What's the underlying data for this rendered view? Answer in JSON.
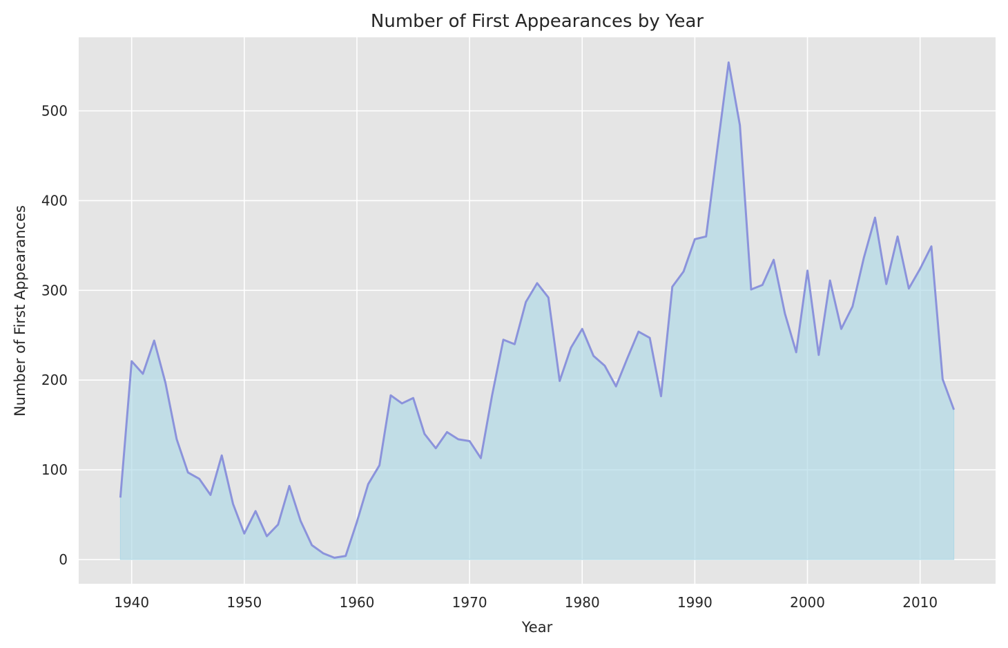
{
  "chart_data": {
    "type": "area",
    "title": "Number of First Appearances by Year",
    "xlabel": "Year",
    "ylabel": "Number of First Appearances",
    "xlim": [
      1935.3,
      2016.7
    ],
    "ylim": [
      -27,
      582
    ],
    "xticks": [
      1940,
      1950,
      1960,
      1970,
      1980,
      1990,
      2000,
      2010
    ],
    "yticks": [
      0,
      100,
      200,
      300,
      400,
      500
    ],
    "grid": true,
    "legend": "none",
    "colors": {
      "background": "#e5e5e5",
      "grid": "#ffffff",
      "line": "#8b93db",
      "fill": "#add8e6"
    },
    "x": [
      1939,
      1940,
      1941,
      1942,
      1943,
      1944,
      1945,
      1946,
      1947,
      1948,
      1949,
      1950,
      1951,
      1952,
      1953,
      1954,
      1955,
      1956,
      1957,
      1958,
      1959,
      1960,
      1961,
      1962,
      1963,
      1964,
      1965,
      1966,
      1967,
      1968,
      1969,
      1970,
      1971,
      1972,
      1973,
      1974,
      1975,
      1976,
      1977,
      1978,
      1979,
      1980,
      1981,
      1982,
      1983,
      1984,
      1985,
      1986,
      1987,
      1988,
      1989,
      1990,
      1991,
      1992,
      1993,
      1994,
      1995,
      1996,
      1997,
      1998,
      1999,
      2000,
      2001,
      2002,
      2003,
      2004,
      2005,
      2006,
      2007,
      2008,
      2009,
      2010,
      2011,
      2012,
      2013
    ],
    "y": [
      69,
      221,
      207,
      244,
      197,
      134,
      97,
      90,
      72,
      116,
      62,
      29,
      54,
      26,
      39,
      82,
      43,
      16,
      7,
      2,
      4,
      42,
      84,
      105,
      183,
      174,
      180,
      140,
      124,
      142,
      134,
      132,
      113,
      183,
      245,
      240,
      287,
      308,
      292,
      199,
      236,
      257,
      227,
      216,
      193,
      224,
      254,
      247,
      182,
      304,
      321,
      357,
      360,
      458,
      554,
      484,
      301,
      306,
      334,
      274,
      231,
      322,
      228,
      311,
      257,
      282,
      336,
      381,
      307,
      360,
      302,
      324,
      349,
      201,
      167
    ]
  }
}
